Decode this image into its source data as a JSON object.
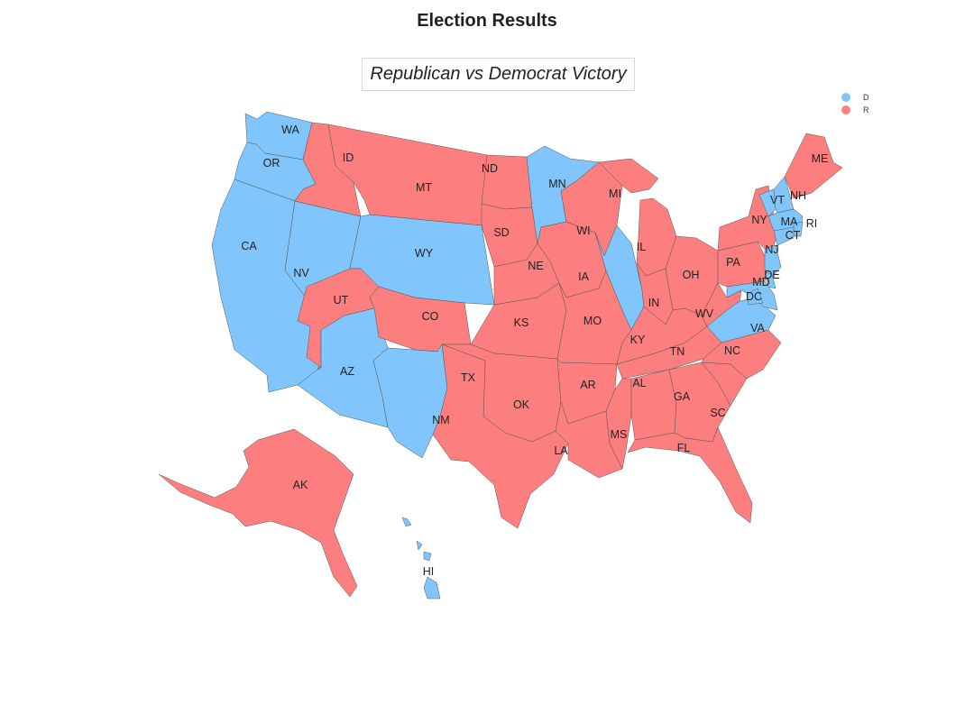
{
  "title": "Election Results",
  "subtitle": "Republican vs Democrat Victory",
  "colors": {
    "D": "#80c6fd",
    "R": "#fd7e7e"
  },
  "legend": [
    {
      "key": "D",
      "label": "D"
    },
    {
      "key": "R",
      "label": "R"
    }
  ],
  "states": [
    {
      "code": "WA",
      "label": "WA",
      "party": "D"
    },
    {
      "code": "OR",
      "label": "OR",
      "party": "D"
    },
    {
      "code": "CA",
      "label": "CA",
      "party": "D"
    },
    {
      "code": "NV",
      "label": "NV",
      "party": "D"
    },
    {
      "code": "ID",
      "label": "ID",
      "party": "R"
    },
    {
      "code": "MT",
      "label": "MT",
      "party": "R"
    },
    {
      "code": "WY",
      "label": "WY",
      "party": "D"
    },
    {
      "code": "UT",
      "label": "UT",
      "party": "R"
    },
    {
      "code": "AZ",
      "label": "AZ",
      "party": "D"
    },
    {
      "code": "CO",
      "label": "CO",
      "party": "R"
    },
    {
      "code": "NM",
      "label": "NM",
      "party": "D"
    },
    {
      "code": "ND",
      "label": "ND",
      "party": "R"
    },
    {
      "code": "SD",
      "label": "SD",
      "party": "R"
    },
    {
      "code": "NE",
      "label": "NE",
      "party": "R"
    },
    {
      "code": "KS",
      "label": "KS",
      "party": "R"
    },
    {
      "code": "OK",
      "label": "OK",
      "party": "R"
    },
    {
      "code": "TX",
      "label": "TX",
      "party": "R"
    },
    {
      "code": "MN",
      "label": "MN",
      "party": "D"
    },
    {
      "code": "IA",
      "label": "IA",
      "party": "R"
    },
    {
      "code": "MO",
      "label": "MO",
      "party": "R"
    },
    {
      "code": "AR",
      "label": "AR",
      "party": "R"
    },
    {
      "code": "LA",
      "label": "LA",
      "party": "R"
    },
    {
      "code": "WI",
      "label": "WI",
      "party": "R"
    },
    {
      "code": "IL",
      "label": "IL",
      "party": "D"
    },
    {
      "code": "MI",
      "label": "MI",
      "party": "R"
    },
    {
      "code": "IN",
      "label": "IN",
      "party": "R"
    },
    {
      "code": "OH",
      "label": "OH",
      "party": "R"
    },
    {
      "code": "KY",
      "label": "KY",
      "party": "R"
    },
    {
      "code": "TN",
      "label": "TN",
      "party": "R"
    },
    {
      "code": "MS",
      "label": "MS",
      "party": "R"
    },
    {
      "code": "AL",
      "label": "AL",
      "party": "R"
    },
    {
      "code": "GA",
      "label": "GA",
      "party": "R"
    },
    {
      "code": "FL",
      "label": "FL",
      "party": "R"
    },
    {
      "code": "SC",
      "label": "SC",
      "party": "R"
    },
    {
      "code": "NC",
      "label": "NC",
      "party": "R"
    },
    {
      "code": "VA",
      "label": "VA",
      "party": "D"
    },
    {
      "code": "WV",
      "label": "WV",
      "party": "R"
    },
    {
      "code": "PA",
      "label": "PA",
      "party": "R"
    },
    {
      "code": "NY",
      "label": "NY",
      "party": "R"
    },
    {
      "code": "VT",
      "label": "VT",
      "party": "D"
    },
    {
      "code": "NH",
      "label": "NH",
      "party": "D"
    },
    {
      "code": "ME",
      "label": "ME",
      "party": "R"
    },
    {
      "code": "MA",
      "label": "MA",
      "party": "D"
    },
    {
      "code": "RI",
      "label": "RI",
      "party": "D"
    },
    {
      "code": "CT",
      "label": "CT",
      "party": "D"
    },
    {
      "code": "NJ",
      "label": "NJ",
      "party": "D"
    },
    {
      "code": "DE",
      "label": "DE",
      "party": "D"
    },
    {
      "code": "MD",
      "label": "MD",
      "party": "D"
    },
    {
      "code": "DC",
      "label": "DC",
      "party": "D"
    },
    {
      "code": "AK",
      "label": "AK",
      "party": "R"
    },
    {
      "code": "HI",
      "label": "HI",
      "party": "D"
    }
  ]
}
